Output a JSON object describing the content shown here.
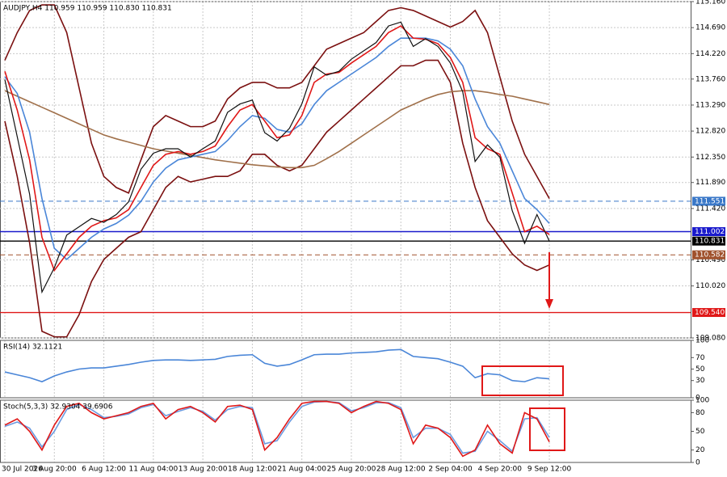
{
  "chart_data": [
    {
      "type": "line",
      "title": "AUDJPY,H4 110.959 110.959 110.830 110.831",
      "categories": [
        "30 Jul 2026",
        null,
        null,
        null,
        "3 Aug 20:00",
        null,
        null,
        null,
        "6 Aug 12:00",
        null,
        null,
        null,
        "11 Aug 04:00",
        null,
        null,
        null,
        "13 Aug 20:00",
        null,
        null,
        null,
        "18 Aug 12:00",
        null,
        null,
        null,
        "21 Aug 04:00",
        null,
        null,
        null,
        "25 Aug 20:00",
        null,
        null,
        null,
        "28 Aug 12:00",
        null,
        null,
        null,
        "2 Sep 04:00",
        null,
        null,
        null,
        "4 Sep 20:00",
        null,
        null,
        null,
        "9 Sep 12:00"
      ],
      "ylim": [
        109.08,
        115.16
      ],
      "yticks": [
        {
          "value": 115.16,
          "label": "115.160"
        },
        {
          "value": 114.69,
          "label": "114.690"
        },
        {
          "value": 114.22,
          "label": "114.220"
        },
        {
          "value": 113.76,
          "label": "113.760"
        },
        {
          "value": 113.29,
          "label": "113.290"
        },
        {
          "value": 112.82,
          "label": "112.820"
        },
        {
          "value": 112.35,
          "label": "112.350"
        },
        {
          "value": 111.89,
          "label": "111.890"
        },
        {
          "value": 111.42,
          "label": "111.420"
        },
        {
          "value": 110.49,
          "label": "110.490"
        },
        {
          "value": 110.02,
          "label": "110.020"
        },
        {
          "value": 109.08,
          "label": "109.080"
        }
      ],
      "grid": true,
      "series": [
        {
          "color": "#7b1010",
          "values": [
            114.1,
            114.6,
            115.0,
            115.1,
            115.1,
            114.6,
            113.6,
            112.6,
            112.0,
            111.8,
            111.7,
            112.3,
            112.9,
            113.1,
            113.0,
            112.9,
            112.9,
            113.0,
            113.4,
            113.6,
            113.7,
            113.7,
            113.6,
            113.6,
            113.7,
            114.0,
            114.3,
            114.4,
            114.5,
            114.6,
            114.8,
            115.0,
            115.05,
            115.0,
            114.9,
            114.8,
            114.7,
            114.8,
            115.0,
            114.6,
            113.8,
            113.0,
            112.4,
            112.0,
            111.6
          ]
        },
        {
          "color": "#7b1010",
          "values": [
            113.0,
            112.0,
            110.8,
            109.2,
            109.1,
            109.1,
            109.5,
            110.1,
            110.5,
            110.7,
            110.9,
            111.0,
            111.4,
            111.8,
            112.0,
            111.9,
            111.95,
            112.0,
            112.0,
            112.1,
            112.4,
            112.4,
            112.2,
            112.1,
            112.2,
            112.5,
            112.8,
            113.0,
            113.2,
            113.4,
            113.6,
            113.8,
            114.0,
            114.0,
            114.1,
            114.1,
            113.7,
            112.6,
            111.8,
            111.2,
            110.9,
            110.6,
            110.4,
            110.3,
            110.4
          ]
        },
        {
          "color": "#a0704a",
          "values": [
            113.55,
            113.45,
            113.35,
            113.25,
            113.15,
            113.05,
            112.95,
            112.85,
            112.75,
            112.68,
            112.62,
            112.56,
            112.5,
            112.46,
            112.42,
            112.38,
            112.34,
            112.3,
            112.27,
            112.24,
            112.21,
            112.19,
            112.17,
            112.16,
            112.16,
            112.2,
            112.32,
            112.45,
            112.6,
            112.75,
            112.9,
            113.05,
            113.2,
            113.3,
            113.4,
            113.48,
            113.53,
            113.55,
            113.55,
            113.52,
            113.48,
            113.45,
            113.4,
            113.35,
            113.3
          ]
        },
        {
          "color": "#4a86d8",
          "values": [
            113.8,
            113.5,
            112.8,
            111.6,
            110.7,
            110.5,
            110.7,
            110.9,
            111.05,
            111.15,
            111.3,
            111.55,
            111.9,
            112.15,
            112.3,
            112.35,
            112.4,
            112.45,
            112.65,
            112.9,
            113.1,
            113.05,
            112.85,
            112.8,
            112.95,
            113.3,
            113.55,
            113.7,
            113.85,
            114.0,
            114.15,
            114.35,
            114.5,
            114.5,
            114.5,
            114.45,
            114.3,
            114.0,
            113.4,
            112.9,
            112.6,
            112.1,
            111.6,
            111.4,
            111.15
          ]
        },
        {
          "color": "#e01818",
          "values": [
            113.9,
            113.2,
            112.3,
            110.9,
            110.3,
            110.6,
            110.9,
            111.1,
            111.2,
            111.25,
            111.4,
            111.8,
            112.2,
            112.4,
            112.45,
            112.4,
            112.45,
            112.55,
            112.9,
            113.2,
            113.3,
            113.0,
            112.7,
            112.75,
            113.1,
            113.7,
            113.85,
            113.88,
            114.05,
            114.2,
            114.35,
            114.6,
            114.72,
            114.5,
            114.48,
            114.4,
            114.15,
            113.7,
            112.7,
            112.5,
            112.4,
            111.7,
            111.0,
            111.1,
            110.95
          ]
        },
        {
          "color": "#111111",
          "values": [
            113.75,
            112.72,
            111.68,
            109.91,
            110.35,
            110.94,
            111.09,
            111.24,
            111.17,
            111.31,
            111.54,
            112.13,
            112.42,
            112.5,
            112.5,
            112.35,
            112.5,
            112.64,
            113.16,
            113.31,
            113.38,
            112.79,
            112.64,
            112.87,
            113.31,
            113.98,
            113.83,
            113.9,
            114.12,
            114.27,
            114.42,
            114.72,
            114.79,
            114.35,
            114.49,
            114.35,
            114.05,
            113.53,
            112.27,
            112.57,
            112.35,
            111.38,
            110.79,
            111.31,
            110.831
          ]
        }
      ],
      "levels": [
        {
          "value": 111.551,
          "color": "#3a78c8",
          "dashed": true
        },
        {
          "value": 111.002,
          "color": "#1a1acc",
          "dashed": false
        },
        {
          "value": 110.831,
          "color": "#000000",
          "dashed": false
        },
        {
          "value": 110.582,
          "color": "#a0522d",
          "dashed": true
        },
        {
          "value": 109.54,
          "label": "109.540",
          "color": "#e01818",
          "dashed": false
        }
      ]
    },
    {
      "type": "line",
      "title": "RSI(14) 32.1121",
      "ylim": [
        0,
        100
      ],
      "yticks": [
        0,
        30,
        50,
        70,
        100
      ],
      "grid": false,
      "series": [
        {
          "color": "#4a86d8",
          "values": [
            45,
            40,
            35,
            28,
            38,
            45,
            50,
            52,
            52,
            55,
            58,
            62,
            65,
            66,
            66,
            65,
            66,
            67,
            72,
            74,
            75,
            60,
            55,
            58,
            66,
            75,
            76,
            76,
            78,
            79,
            80,
            83,
            84,
            72,
            70,
            68,
            62,
            55,
            35,
            42,
            40,
            30,
            28,
            35,
            33
          ]
        }
      ]
    },
    {
      "type": "line",
      "title": "Stoch(5,3,3) 32.9304 39.6906",
      "ylim": [
        0,
        100
      ],
      "yticks": [
        0,
        20,
        50,
        80,
        100
      ],
      "grid": false,
      "series": [
        {
          "color": "#6c9be0",
          "values": [
            58,
            65,
            55,
            25,
            50,
            85,
            93,
            85,
            72,
            74,
            78,
            88,
            93,
            75,
            82,
            88,
            82,
            68,
            85,
            90,
            88,
            30,
            35,
            65,
            90,
            97,
            98,
            96,
            83,
            88,
            96,
            96,
            88,
            40,
            55,
            55,
            45,
            15,
            18,
            50,
            35,
            18,
            70,
            72,
            40
          ]
        },
        {
          "color": "#e01818",
          "values": [
            60,
            70,
            50,
            20,
            60,
            90,
            95,
            80,
            70,
            75,
            80,
            90,
            95,
            70,
            85,
            90,
            80,
            65,
            90,
            92,
            85,
            20,
            40,
            70,
            95,
            98,
            98,
            95,
            80,
            90,
            98,
            95,
            85,
            30,
            60,
            55,
            40,
            10,
            20,
            60,
            30,
            15,
            80,
            70,
            33
          ]
        }
      ]
    }
  ]
}
